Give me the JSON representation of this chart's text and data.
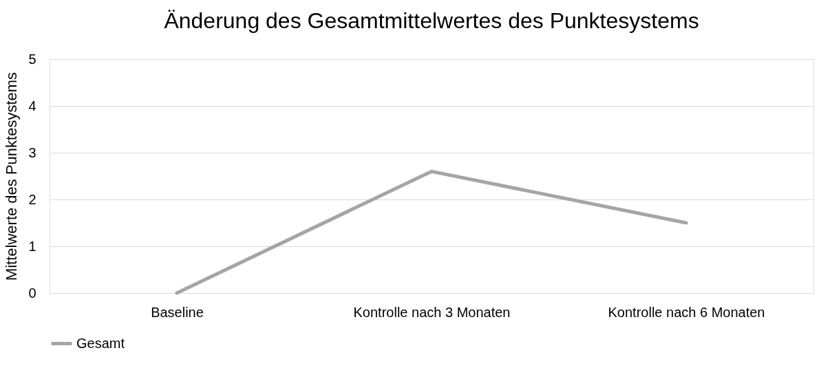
{
  "chart_data": {
    "type": "line",
    "title": "Änderung des Gesamtmittelwertes des Punktesystems",
    "ylabel": "Mittelwerte des Punktesystems",
    "categories": [
      "Baseline",
      "Kontrolle nach 3 Monaten",
      "Kontrolle nach 6 Monaten"
    ],
    "series": [
      {
        "name": "Gesamt",
        "color": "#a5a5a5",
        "values": [
          0,
          2.6,
          1.5
        ]
      }
    ],
    "ylim": [
      0,
      5
    ],
    "yticks": [
      0,
      1,
      2,
      3,
      4,
      5
    ],
    "grid": "y",
    "legend": "bottom"
  }
}
